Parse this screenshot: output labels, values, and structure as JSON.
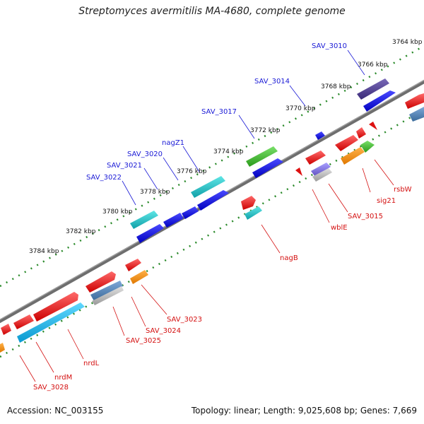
{
  "title": "Streptomyces avermitilis MA-4680, complete genome",
  "footer": {
    "accession": "Accession: NC_003155",
    "stats": "Topology: linear; Length: 9,025,608 bp; Genes: 7,669"
  },
  "ruler_ticks": [
    "3764 kbp",
    "3766 kbp",
    "3768 kbp",
    "3770 kbp",
    "3772 kbp",
    "3774 kbp",
    "3776 kbp",
    "3778 kbp",
    "3780 kbp",
    "3782 kbp",
    "3784 kbp"
  ],
  "genes_upper": [
    "SAV_3010",
    "SAV_3014",
    "SAV_3017",
    "nagZ1",
    "SAV_3020",
    "SAV_3021",
    "SAV_3022"
  ],
  "genes_lower": [
    "rsbW",
    "sig21",
    "SAV_3015",
    "wblE",
    "nagB",
    "SAV_3023",
    "SAV_3024",
    "SAV_3025",
    "nrdL",
    "nrdM",
    "SAV_3028"
  ]
}
